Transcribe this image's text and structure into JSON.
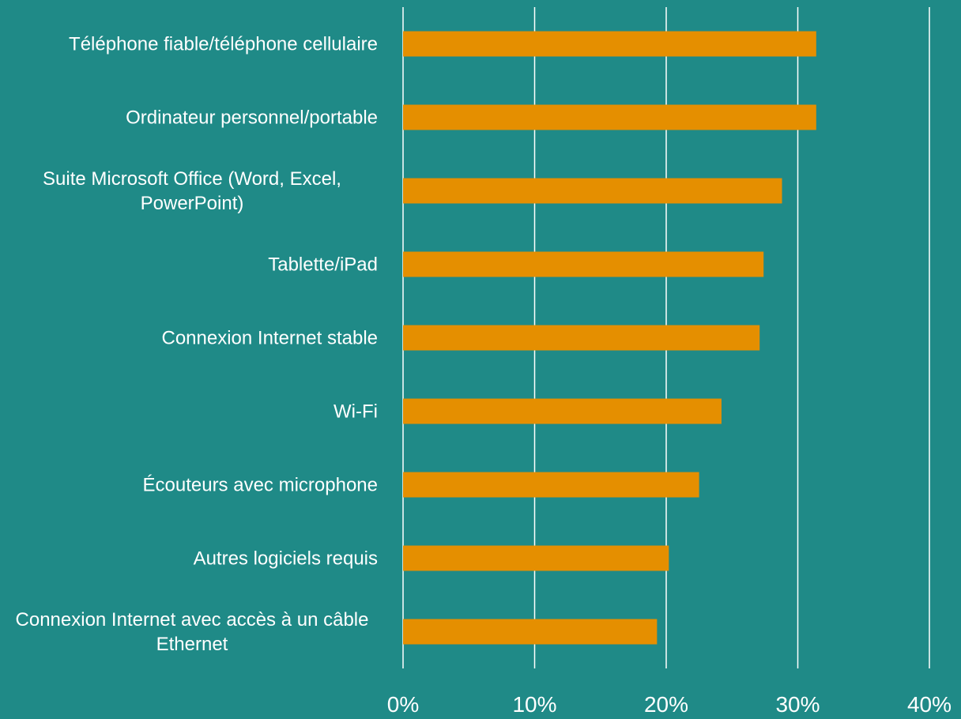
{
  "chart_data": {
    "type": "bar",
    "orientation": "horizontal",
    "categories": [
      "Téléphone fiable/téléphone cellulaire",
      "Ordinateur personnel/portable",
      "Suite Microsoft Office (Word, Excel, PowerPoint)",
      "Tablette/iPad",
      "Connexion Internet stable",
      "Wi-Fi",
      "Écouteurs avec microphone",
      "Autres logiciels requis",
      "Connexion Internet avec accès à un câble Ethernet"
    ],
    "values": [
      31.4,
      31.4,
      28.8,
      27.4,
      27.1,
      24.2,
      22.5,
      20.2,
      19.3
    ],
    "color": "#e58f00",
    "xlim": [
      0,
      40
    ],
    "xticks": [
      {
        "value": 0,
        "label": "0%"
      },
      {
        "value": 10,
        "label": "10%"
      },
      {
        "value": 20,
        "label": "20%"
      },
      {
        "value": 30,
        "label": "30%"
      },
      {
        "value": 40,
        "label": "40%"
      }
    ],
    "grid": true
  }
}
